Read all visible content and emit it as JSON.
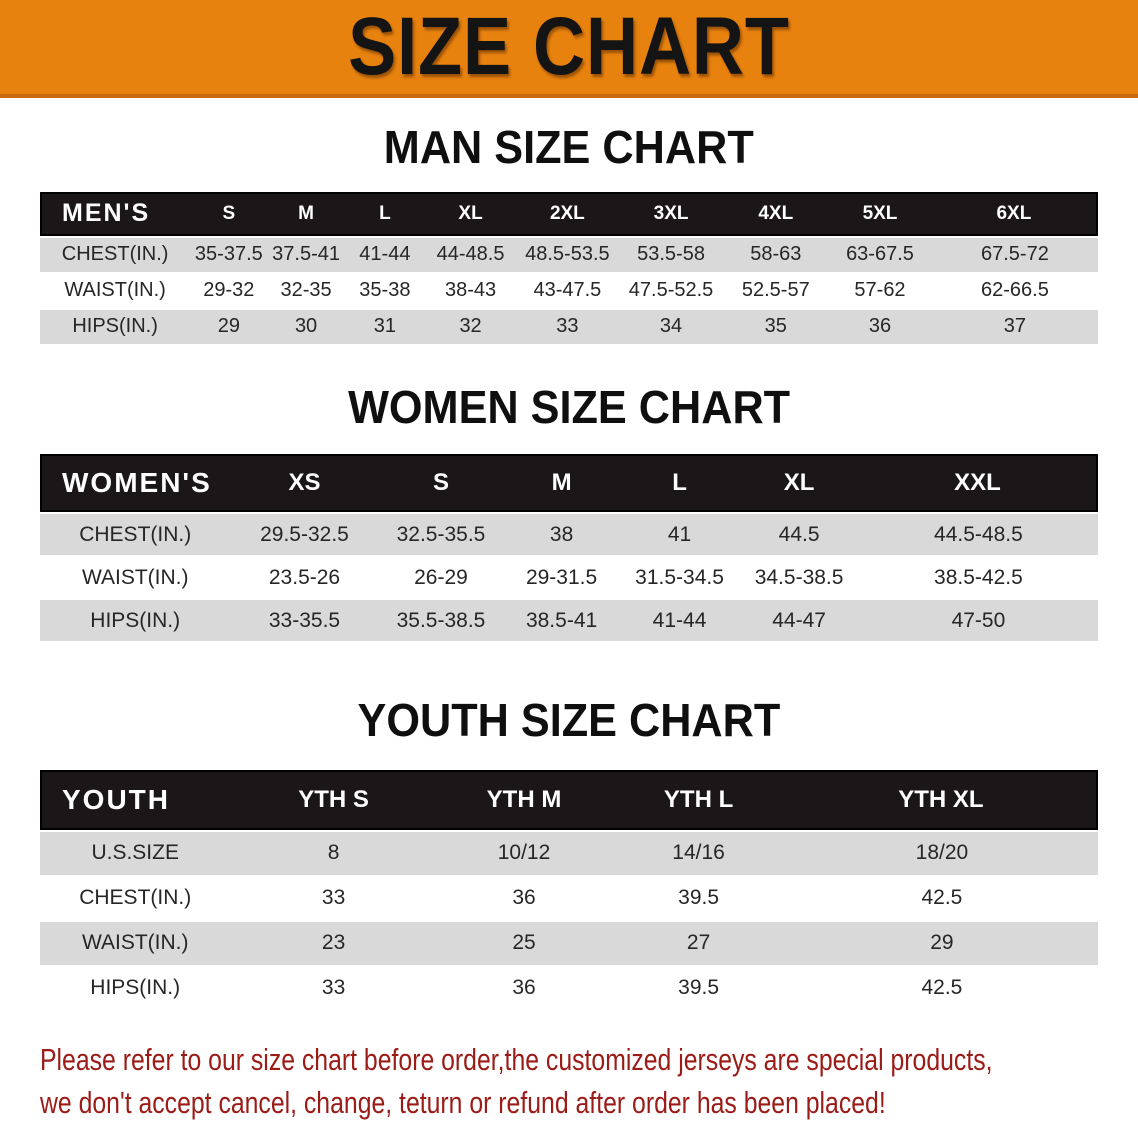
{
  "banner": {
    "title": "SIZE CHART"
  },
  "sections": [
    {
      "id": "men",
      "title": "MAN SIZE CHART",
      "header_label": "MEN'S",
      "sizes": [
        "S",
        "M",
        "L",
        "XL",
        "2XL",
        "3XL",
        "4XL",
        "5XL",
        "6XL"
      ],
      "rows": [
        {
          "label": "CHEST(IN.)",
          "values": [
            "35-37.5",
            "37.5-41",
            "41-44",
            "44-48.5",
            "48.5-53.5",
            "53.5-58",
            "58-63",
            "63-67.5",
            "67.5-72"
          ]
        },
        {
          "label": "WAIST(IN.)",
          "values": [
            "29-32",
            "32-35",
            "35-38",
            "38-43",
            "43-47.5",
            "47.5-52.5",
            "52.5-57",
            "57-62",
            "62-66.5"
          ]
        },
        {
          "label": "HIPS(IN.)",
          "values": [
            "29",
            "30",
            "31",
            "32",
            "33",
            "34",
            "35",
            "36",
            "37"
          ]
        }
      ]
    },
    {
      "id": "women",
      "title": "WOMEN SIZE CHART",
      "header_label": "WOMEN'S",
      "sizes": [
        "XS",
        "S",
        "M",
        "L",
        "XL",
        "XXL"
      ],
      "rows": [
        {
          "label": "CHEST(IN.)",
          "values": [
            "29.5-32.5",
            "32.5-35.5",
            "38",
            "41",
            "44.5",
            "44.5-48.5"
          ]
        },
        {
          "label": "WAIST(IN.)",
          "values": [
            "23.5-26",
            "26-29",
            "29-31.5",
            "31.5-34.5",
            "34.5-38.5",
            "38.5-42.5"
          ]
        },
        {
          "label": "HIPS(IN.)",
          "values": [
            "33-35.5",
            "35.5-38.5",
            "38.5-41",
            "41-44",
            "44-47",
            "47-50"
          ]
        }
      ]
    },
    {
      "id": "youth",
      "title": "YOUTH SIZE CHART",
      "header_label": "YOUTH",
      "sizes": [
        "YTH S",
        "YTH M",
        "YTH L",
        "YTH XL"
      ],
      "rows": [
        {
          "label": "U.S.SIZE",
          "values": [
            "8",
            "10/12",
            "14/16",
            "18/20"
          ]
        },
        {
          "label": "CHEST(IN.)",
          "values": [
            "33",
            "36",
            "39.5",
            "42.5"
          ]
        },
        {
          "label": "WAIST(IN.)",
          "values": [
            "23",
            "25",
            "27",
            "29"
          ]
        },
        {
          "label": "HIPS(IN.)",
          "values": [
            "33",
            "36",
            "39.5",
            "42.5"
          ]
        }
      ]
    }
  ],
  "disclaimer": {
    "line1": "Please refer to our size chart before order,the customized jerseys are special products,",
    "line2": "we don't accept cancel, change, teturn or refund after order has been placed!"
  },
  "colors": {
    "banner_bg": "#E8820E",
    "banner_text": "#141414",
    "header_bar": "#1B1617",
    "header_text": "#FFFFFF",
    "row_shaded": "#D9D9D9",
    "row_plain": "#FFFFFF",
    "body_text": "#262626",
    "title_text": "#0F0F0F",
    "disclaimer_text": "#9B1B17"
  }
}
